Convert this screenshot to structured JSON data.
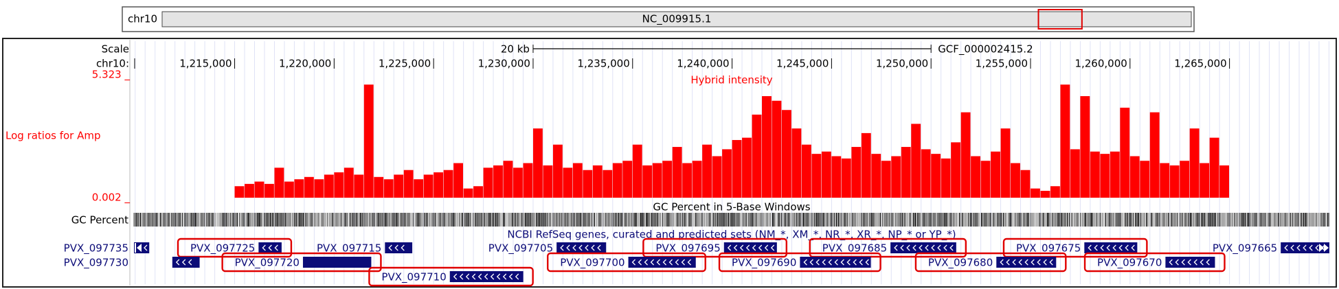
{
  "header": {
    "chrom": "chr10",
    "accession": "NC_009915.1",
    "chromosome_length": 1421000
  },
  "ruler": {
    "scale_label": "Scale",
    "chrom_label": "chr10:",
    "scale_bar": {
      "label": "20 kb",
      "start": 1230000,
      "end": 1250000
    },
    "assembly": "GCF_000002415.2",
    "xlim": [
      1209940,
      1270020
    ],
    "xticks": [
      {
        "value": 1215000,
        "label": "1,215,000"
      },
      {
        "value": 1220000,
        "label": "1,220,000"
      },
      {
        "value": 1225000,
        "label": "1,225,000"
      },
      {
        "value": 1230000,
        "label": "1,230,000"
      },
      {
        "value": 1235000,
        "label": "1,235,000"
      },
      {
        "value": 1240000,
        "label": "1,240,000"
      },
      {
        "value": 1245000,
        "label": "1,245,000"
      },
      {
        "value": 1250000,
        "label": "1,250,000"
      },
      {
        "value": 1255000,
        "label": "1,255,000"
      },
      {
        "value": 1260000,
        "label": "1,260,000"
      },
      {
        "value": 1265000,
        "label": "1,265,000"
      }
    ]
  },
  "signal": {
    "label": "Log ratios for Amp",
    "title": "Hybrid intensity",
    "color": "#ff0000",
    "ylim": [
      0.002,
      5.323
    ],
    "yticks": [
      {
        "value": 5.323,
        "label": "5.323 _"
      },
      {
        "value": 0.002,
        "label": "0.002 _"
      }
    ],
    "bins": [
      1215000,
      1215500,
      1216000,
      1216500,
      1217000,
      1217500,
      1218000,
      1218500,
      1219000,
      1219500,
      1220000,
      1220500,
      1221000,
      1221500,
      1222000,
      1222500,
      1223000,
      1223500,
      1224000,
      1224500,
      1225000,
      1225500,
      1226000,
      1226500,
      1227000,
      1227500,
      1228000,
      1228500,
      1229000,
      1229500,
      1230000,
      1230500,
      1231000,
      1231500,
      1232000,
      1232500,
      1233000,
      1233500,
      1234000,
      1234500,
      1235000,
      1235500,
      1236000,
      1236500,
      1237000,
      1237500,
      1238000,
      1238500,
      1239000,
      1239500,
      1240000,
      1240500,
      1241000,
      1241500,
      1242000,
      1242500,
      1243000,
      1243500,
      1244000,
      1244500,
      1245000,
      1245500,
      1246000,
      1246500,
      1247000,
      1247500,
      1248000,
      1248500,
      1249000,
      1249500,
      1250000,
      1250500,
      1251000,
      1251500,
      1252000,
      1252500,
      1253000,
      1253500,
      1254000,
      1254500,
      1255000,
      1255500,
      1256000,
      1256500,
      1257000,
      1257500,
      1258000,
      1258500,
      1259000,
      1259500,
      1260000,
      1260500,
      1261000,
      1261500,
      1262000,
      1262500,
      1263000,
      1263500,
      1264000,
      1264500,
      1265000
    ],
    "values": [
      0.5,
      0.6,
      0.7,
      0.6,
      1.3,
      0.7,
      0.8,
      0.9,
      0.8,
      1.0,
      1.1,
      1.3,
      1.0,
      4.9,
      0.9,
      0.8,
      1.0,
      1.2,
      0.8,
      1.0,
      1.1,
      1.2,
      1.5,
      0.4,
      0.5,
      1.3,
      1.4,
      1.6,
      1.3,
      1.5,
      3.0,
      1.4,
      2.3,
      1.3,
      1.5,
      1.2,
      1.4,
      1.2,
      1.5,
      1.6,
      2.3,
      1.4,
      1.5,
      1.6,
      2.2,
      1.5,
      1.6,
      2.3,
      1.8,
      2.1,
      2.5,
      2.6,
      3.6,
      4.4,
      4.2,
      3.8,
      3.0,
      2.3,
      1.9,
      2.0,
      1.8,
      1.7,
      2.2,
      2.8,
      1.9,
      1.6,
      1.8,
      2.2,
      3.2,
      2.1,
      1.9,
      1.7,
      2.4,
      3.7,
      1.8,
      1.6,
      2.0,
      3.0,
      1.5,
      1.2,
      0.4,
      0.3,
      0.5,
      4.9,
      2.1,
      4.4,
      2.0,
      1.9,
      2.0,
      3.9,
      1.8,
      1.6,
      3.7,
      1.5,
      1.4,
      1.6,
      3.0,
      1.5,
      2.6,
      1.4
    ]
  },
  "gc": {
    "label": "GC Percent",
    "title": "GC Percent in 5-Base Windows"
  },
  "genes": {
    "title": "NCBI RefSeq genes, curated and predicted sets (NM_*, XM_*, NR_*, XR_*, NP_* or YP_*)",
    "color": "#0c0c78",
    "highlight_color": "#e00000",
    "items": [
      {
        "name": "PVX_097735",
        "start": 1209940,
        "end": 1210708,
        "strand": "-",
        "highlight": false
      },
      {
        "name": "PVX_097725",
        "start": 1216202,
        "end": 1217361,
        "strand": "-",
        "highlight": true
      },
      {
        "name": "PVX_097715",
        "start": 1222554,
        "end": 1223927,
        "strand": "-",
        "highlight": false
      },
      {
        "name": "PVX_097705",
        "start": 1231180,
        "end": 1233670,
        "strand": "-",
        "highlight": false
      },
      {
        "name": "PVX_097695",
        "start": 1239592,
        "end": 1242253,
        "strand": "-",
        "highlight": true
      },
      {
        "name": "PVX_097685",
        "start": 1247961,
        "end": 1251266,
        "strand": "-",
        "highlight": true
      },
      {
        "name": "PVX_097675",
        "start": 1257704,
        "end": 1260365,
        "strand": "-",
        "highlight": true
      },
      {
        "name": "PVX_097665",
        "start": 1267575,
        "end": 1270020,
        "strand": "-",
        "highlight": false
      },
      {
        "name": "PVX_097730",
        "start": 1211867,
        "end": 1213240,
        "strand": "-",
        "highlight": false
      },
      {
        "name": "PVX_097720",
        "start": 1218433,
        "end": 1221867,
        "highlight": true
      },
      {
        "name": "PVX_097700",
        "start": 1234785,
        "end": 1238176,
        "strand": "-",
        "highlight": true
      },
      {
        "name": "PVX_097690",
        "start": 1243412,
        "end": 1246974,
        "strand": "-",
        "highlight": true
      },
      {
        "name": "PVX_097680",
        "start": 1253283,
        "end": 1256288,
        "strand": "-",
        "highlight": true
      },
      {
        "name": "PVX_097670",
        "start": 1261781,
        "end": 1264270,
        "strand": "-",
        "highlight": true
      },
      {
        "name": "PVX_097710",
        "start": 1225815,
        "end": 1229506,
        "strand": "-",
        "highlight": true
      }
    ]
  }
}
